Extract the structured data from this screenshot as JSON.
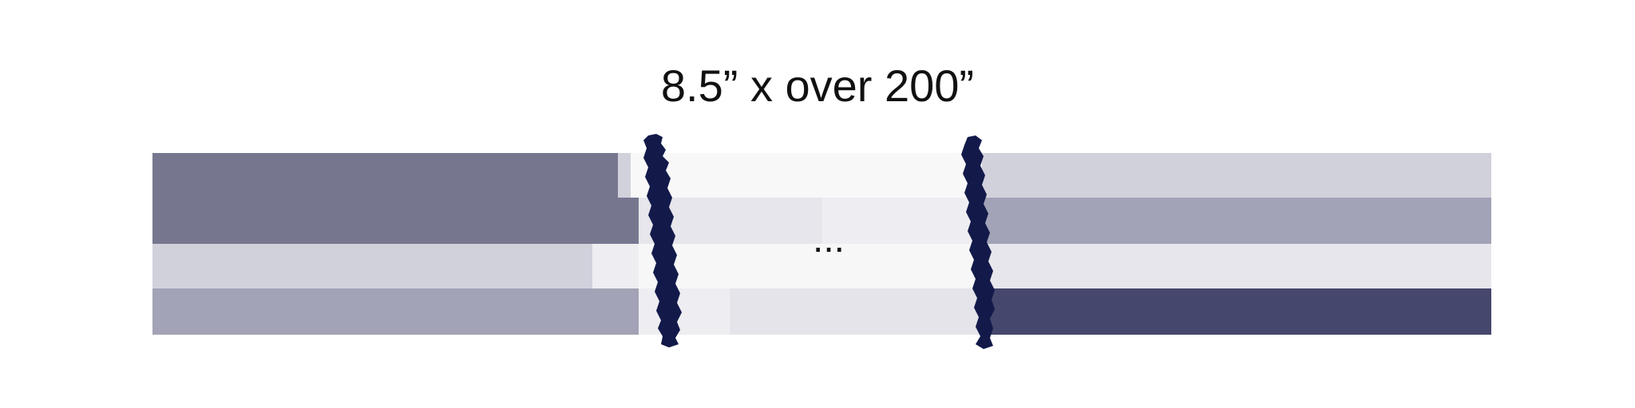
{
  "title": "8.5” x over 200”",
  "ellipsis": "...",
  "icons": {
    "left_tear": "torn-edge-icon",
    "right_tear": "torn-edge-icon"
  },
  "colors": {
    "tear": "#131a4a",
    "ellipsis": "#111111",
    "background": "#ffffff"
  }
}
